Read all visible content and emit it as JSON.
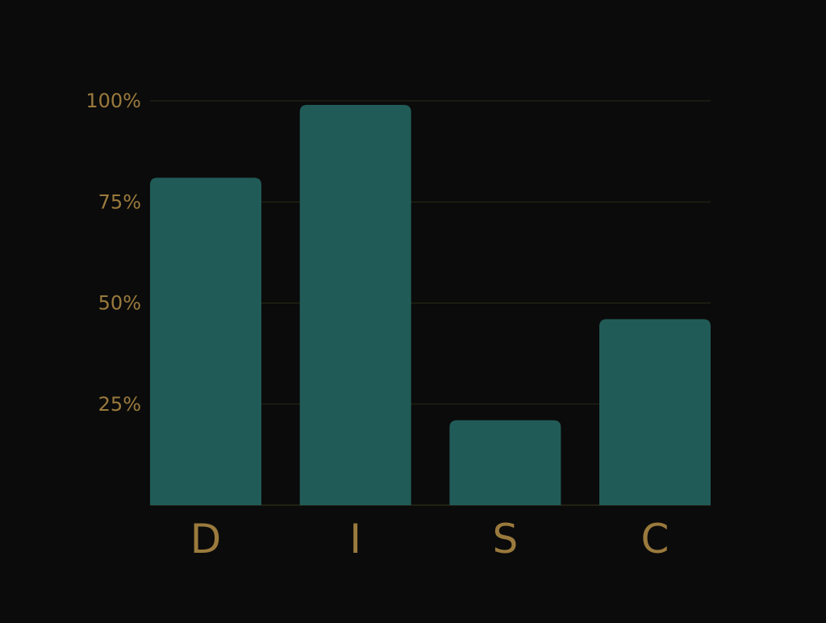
{
  "chart_data": {
    "type": "bar",
    "title": "",
    "xlabel": "",
    "ylabel": "",
    "categories": [
      "D",
      "I",
      "S",
      "C"
    ],
    "values": [
      81,
      99,
      21,
      46
    ],
    "ylim": [
      0,
      100
    ],
    "y_ticks": [
      25,
      50,
      75,
      100
    ],
    "y_tick_labels": [
      "25%",
      "50%",
      "75%",
      "100%"
    ],
    "grid": true,
    "legend": "none"
  },
  "colors": {
    "background": "#0b0b0b",
    "bar": "#215b58",
    "text": "#9a7a3d",
    "grid": "#2a2a18"
  }
}
